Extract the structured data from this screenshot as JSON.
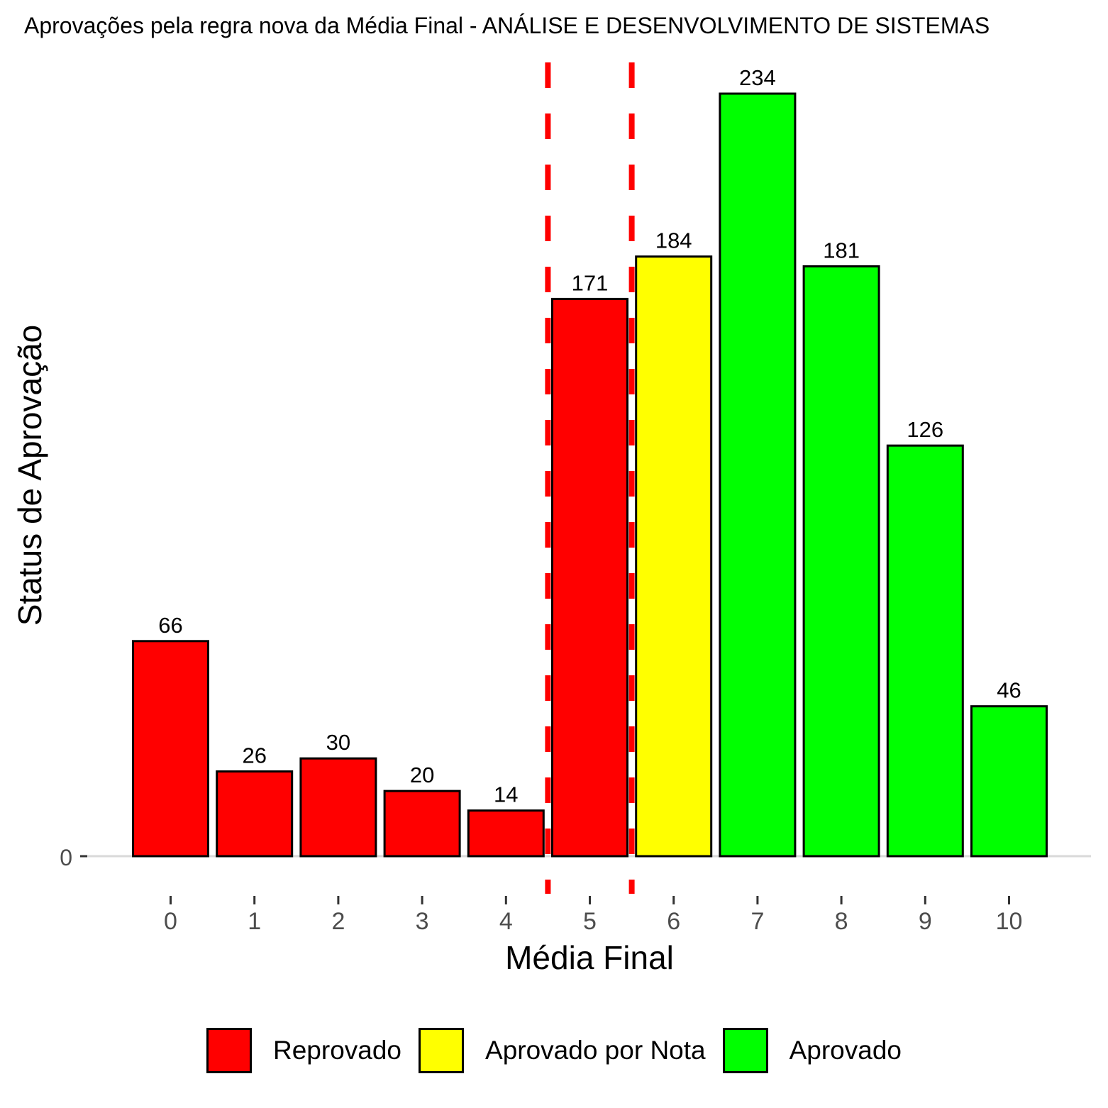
{
  "chart_data": {
    "type": "bar",
    "title": "Aprovações pela regra nova da Média Final - ANÁLISE E DESENVOLVIMENTO DE SISTEMAS",
    "xlabel": "Média Final",
    "ylabel": "Status de Aprovação",
    "categories": [
      "0",
      "1",
      "2",
      "3",
      "4",
      "5",
      "6",
      "7",
      "8",
      "9",
      "10"
    ],
    "values": [
      66,
      26,
      30,
      20,
      14,
      171,
      184,
      234,
      181,
      126,
      46
    ],
    "status": [
      "Reprovado",
      "Reprovado",
      "Reprovado",
      "Reprovado",
      "Reprovado",
      "Reprovado",
      "Aprovado por Nota",
      "Aprovado",
      "Aprovado",
      "Aprovado",
      "Aprovado"
    ],
    "y_ticks": [
      "0"
    ],
    "ylim": [
      0,
      240
    ],
    "reference_lines_x": [
      4.5,
      5.5
    ],
    "reference_line_color": "#ff0000",
    "grid": false,
    "legend_position": "bottom",
    "legend": [
      {
        "label": "Reprovado",
        "color": "#ff0000"
      },
      {
        "label": "Aprovado por Nota",
        "color": "#ffff00"
      },
      {
        "label": "Aprovado",
        "color": "#00ff00"
      }
    ]
  }
}
